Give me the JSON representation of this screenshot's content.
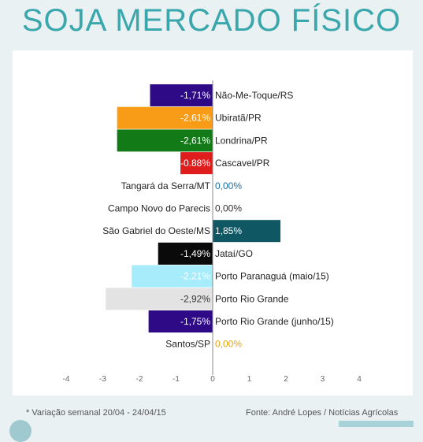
{
  "title": "SOJA MERCADO FÍSICO",
  "footnote": "* Variação semanal 20/04 - 24/04/15",
  "source": "Fonte: André Lopes / Notícias Agrícolas",
  "chart_data": {
    "type": "bar",
    "orientation": "horizontal",
    "xlim": [
      -4,
      4
    ],
    "xticks": [
      "-4",
      "-3",
      "-2",
      "-1",
      "0",
      "1",
      "2",
      "3",
      "4"
    ],
    "grid": false,
    "legend": "none",
    "rows": [
      {
        "category": "Não-Me-Toque/RS",
        "value": -1.71,
        "label": "-1,71%",
        "color": "#2e0a86",
        "label_color": "#ffffff"
      },
      {
        "category": "Ubiratã/PR",
        "value": -2.61,
        "label": "-2,61%",
        "color": "#f89b17",
        "label_color": "#ffffff"
      },
      {
        "category": "Londrina/PR",
        "value": -2.61,
        "label": "-2,61%",
        "color": "#127a17",
        "label_color": "#ffffff"
      },
      {
        "category": "Cascavel/PR",
        "value": -0.88,
        "label": "-0.88%",
        "color": "#e01d1d",
        "label_color": "#ffffff"
      },
      {
        "category": "Tangará da Serra/MT",
        "value": 0.0,
        "label": "0,00%",
        "color": "#1d6fa3",
        "label_color": "#1d6fa3"
      },
      {
        "category": "Campo Novo do Parecis",
        "value": 0.0,
        "label": "0,00%",
        "color": "#333333",
        "label_color": "#333333"
      },
      {
        "category": "São Gabriel do Oeste/MS",
        "value": 1.85,
        "label": "1,85%",
        "color": "#0f5763",
        "label_color": "#ffffff"
      },
      {
        "category": "Jataí/GO",
        "value": -1.49,
        "label": "-1,49%",
        "color": "#0a0a0a",
        "label_color": "#ffffff"
      },
      {
        "category": "Porto Paranaguá (maio/15)",
        "value": -2.21,
        "label": "-2,21%",
        "color": "#a6ecfb",
        "label_color": "#ffffff"
      },
      {
        "category": "Porto Rio Grande",
        "value": -2.92,
        "label": "-2,92%",
        "color": "#e3e3e3",
        "label_color": "#333333"
      },
      {
        "category": "Porto Rio Grande (junho/15)",
        "value": -1.75,
        "label": "-1,75%",
        "color": "#2e0a86",
        "label_color": "#ffffff"
      },
      {
        "category": "Santos/SP",
        "value": 0.0,
        "label": "0,00%",
        "color": "#e6a312",
        "label_color": "#e6a312"
      }
    ]
  }
}
